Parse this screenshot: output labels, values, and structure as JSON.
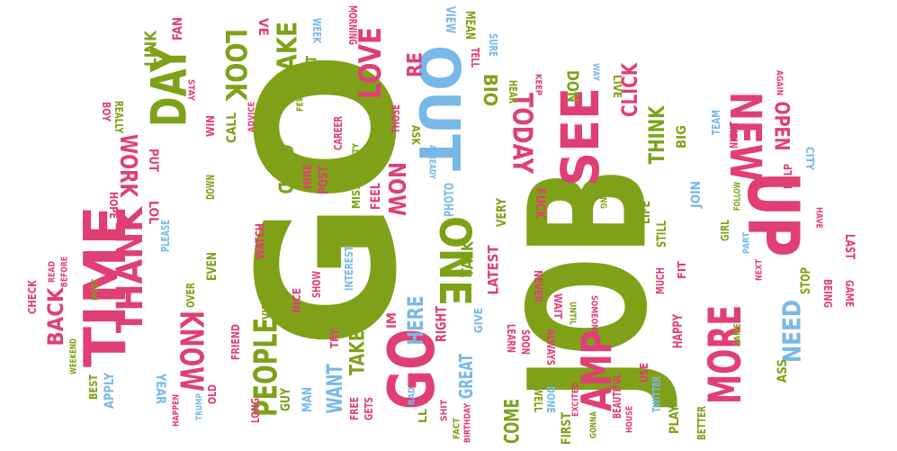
{
  "palette": {
    "green": "#7fa118",
    "pink": "#e03f73",
    "blue": "#78b8e8",
    "lightpink": "#eb8fb0",
    "lightgreen": "#a9c24a"
  },
  "words": [
    "GO",
    "JOB",
    "TIME",
    "OUT",
    "UP",
    "DAY",
    "SEE",
    "NEW",
    "MORE",
    "ONE",
    "THANK",
    "GO",
    "AMP",
    "PEOPLE",
    "KNOW",
    "LOVE",
    "LOOK",
    "MAKE",
    "WORK",
    "BACK",
    "TODAY",
    "NOW",
    "HERE",
    "GOOD",
    "CLICK",
    "THINK",
    "OPEN",
    "NEED",
    "WANT",
    "TAKE",
    "COME",
    "GREAT",
    "TALK",
    "LATEST",
    "RIGHT",
    "LINK",
    "BIO",
    "DON",
    "START",
    "VIEW",
    "MEAN",
    "FAN",
    "CALL",
    "WIN",
    "PUT",
    "LOL",
    "HOPE",
    "CHECK",
    "APPLY",
    "YEAR",
    "BEST",
    "OLD",
    "EVEN",
    "WATCH",
    "VIDEO",
    "NICE",
    "SHOW",
    "INTEREST",
    "POST",
    "HIRE",
    "PHOTO",
    "VERY",
    "FEEL",
    "FUCK",
    "NEVER",
    "WAIT",
    "FIRST",
    "PLAY",
    "BETTER",
    "LIFE",
    "STILL",
    "MUCH",
    "FIT",
    "JOIN",
    "BIG",
    "LAST",
    "STOP",
    "BEING",
    "GAME",
    "TEAM",
    "HELP",
    "LIVE",
    "ASS",
    "GUY",
    "MAN",
    "TRY",
    "GIVE",
    "LEARN",
    "SOON",
    "ALWAYS",
    "HAPPY",
    "USE",
    "WELL",
    "DONE",
    "GETS",
    "FREE",
    "REALLY",
    "BOY",
    "PLEASE",
    "DOWN",
    "CAREER",
    "MISS",
    "PRETTY",
    "HAPPEN",
    "GIRL",
    "NIGHT",
    "CITY",
    "TWITTER",
    "BEAUTIFUL",
    "OVER",
    "FRIEND",
    "LONG",
    "RE",
    "MORNING",
    "THOSE",
    "ASK",
    "HEAR",
    "VE",
    "LL",
    "READ",
    "BEFORE",
    "WEEKEND",
    "TRUMP",
    "SAME",
    "PART",
    "NEXT",
    "FOLLOW",
    "AGAIN",
    "BAD",
    "WEEK",
    "FINAL",
    "ADVICE",
    "KEEP",
    "SURE",
    "TELL",
    "SOMEONE",
    "UNTIL",
    "WAY",
    "FACT",
    "EXCITED",
    "GONNA",
    "HOUSE",
    "ALREADY",
    "FEW",
    "THING",
    "IM",
    "SHIT",
    "HAVE",
    "MUST",
    "STAY",
    "BIRTHDAY"
  ]
}
